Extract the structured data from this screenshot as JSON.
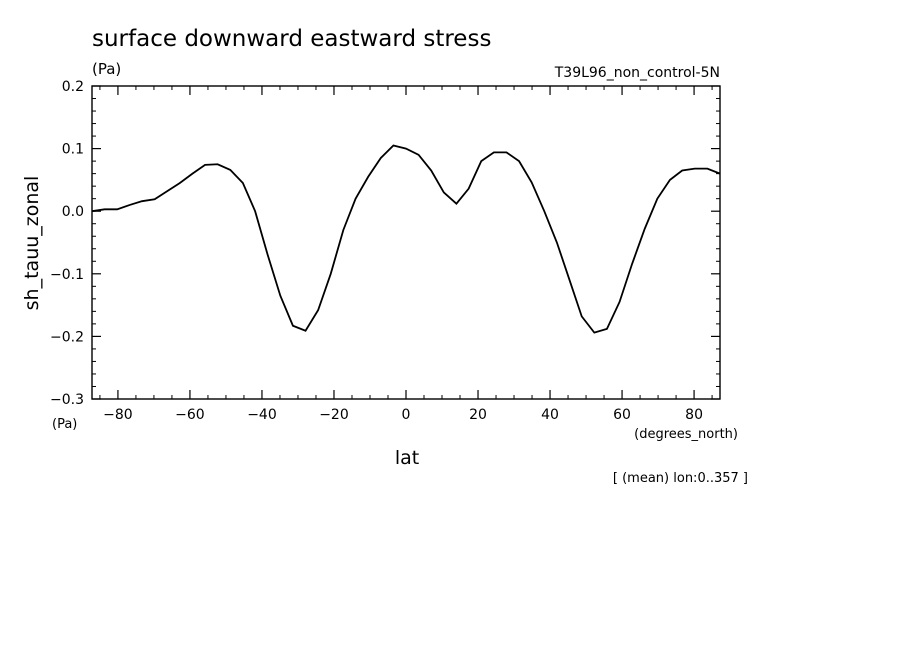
{
  "chart_data": {
    "type": "line",
    "title": "surface downward eastward stress",
    "units_top": "(Pa)",
    "experiment": "T39L96_non_control-5N",
    "ylabel": "sh_tauu_zonal",
    "ylabel_units": "(Pa)",
    "xlabel": "lat",
    "xlabel_units": "(degrees_north)",
    "footnote": "[ (mean) lon:0..357 ]",
    "xlim": [
      -87.2,
      87.2
    ],
    "ylim": [
      -0.3,
      0.2
    ],
    "xticks": [
      -80,
      -60,
      -40,
      -20,
      0,
      20,
      40,
      60,
      80
    ],
    "xtick_labels": [
      "−80",
      "−60",
      "−40",
      "−20",
      "0",
      "20",
      "40",
      "60",
      "80"
    ],
    "yticks": [
      -0.3,
      -0.2,
      -0.1,
      0.0,
      0.1,
      0.2
    ],
    "ytick_labels": [
      "−0.3",
      "−0.2",
      "−0.1",
      "0.0",
      "0.1",
      "0.2"
    ],
    "grid": false,
    "line_color": "#000000",
    "series": [
      {
        "x": [
          -87.2,
          -83.7,
          -80.2,
          -76.7,
          -73.3,
          -69.8,
          -66.3,
          -62.8,
          -59.3,
          -55.8,
          -52.3,
          -48.8,
          -45.3,
          -41.9,
          -38.4,
          -34.9,
          -31.4,
          -27.9,
          -24.4,
          -20.9,
          -17.4,
          -14.0,
          -10.5,
          -7.0,
          -3.5,
          0.0,
          3.5,
          7.0,
          10.5,
          14.0,
          17.4,
          20.9,
          24.4,
          27.9,
          31.4,
          34.9,
          38.4,
          41.9,
          45.3,
          48.8,
          52.3,
          55.8,
          59.3,
          62.8,
          66.3,
          69.8,
          73.3,
          76.7,
          80.2,
          83.7,
          87.2
        ],
        "y": [
          0.0,
          0.003,
          0.003,
          0.01,
          0.016,
          0.019,
          0.032,
          0.045,
          0.06,
          0.074,
          0.075,
          0.066,
          0.045,
          0.0,
          -0.07,
          -0.135,
          -0.183,
          -0.191,
          -0.158,
          -0.1,
          -0.03,
          0.02,
          0.055,
          0.085,
          0.105,
          0.1,
          0.09,
          0.065,
          0.03,
          0.012,
          0.036,
          0.08,
          0.094,
          0.094,
          0.08,
          0.046,
          0.0,
          -0.05,
          -0.108,
          -0.168,
          -0.194,
          -0.188,
          -0.145,
          -0.084,
          -0.028,
          0.02,
          0.05,
          0.065,
          0.068,
          0.068,
          0.06
        ]
      }
    ]
  }
}
